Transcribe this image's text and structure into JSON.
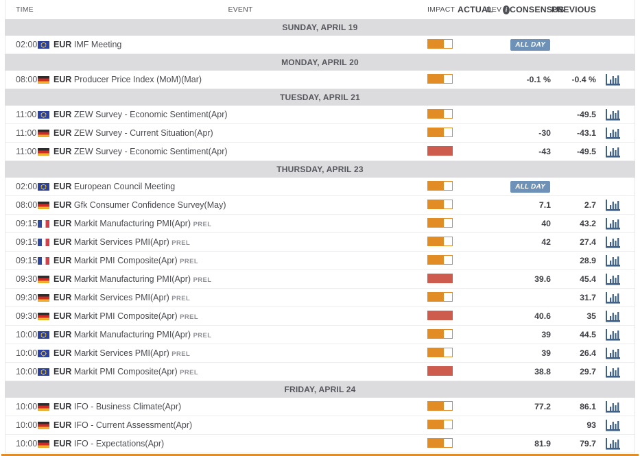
{
  "colors": {
    "accent_orange": "#e18c25",
    "impact_high_red": "#cd5c4e",
    "allday_badge_bg": "#6e92b7",
    "chart_icon_blue": "#3e5f86",
    "separator_bg": "#dcdcde"
  },
  "header": {
    "time": "TIME",
    "event": "EVENT",
    "impact": "IMPACT",
    "actual": "ACTUAL",
    "dev": "DEV",
    "dev_info_glyph": "i",
    "consensus": "CONSENSUS",
    "previous": "PREVIOUS"
  },
  "sections": [
    {
      "date": "SUNDAY, APRIL 19",
      "rows": [
        {
          "time": "02:00",
          "flag": "eu",
          "currency": "EUR",
          "event": "IMF Meeting",
          "prel": "",
          "impact": "medium",
          "actual": "",
          "consensus": "",
          "previous": "",
          "badge": "ALL DAY",
          "chart": false
        }
      ]
    },
    {
      "date": "MONDAY, APRIL 20",
      "rows": [
        {
          "time": "08:00",
          "flag": "de",
          "currency": "EUR",
          "event": "Producer Price Index (MoM)(Mar)",
          "prel": "",
          "impact": "medium",
          "actual": "",
          "consensus": "-0.1 %",
          "previous": "-0.4 %",
          "badge": "",
          "chart": true
        }
      ]
    },
    {
      "date": "TUESDAY, APRIL 21",
      "rows": [
        {
          "time": "11:00",
          "flag": "eu",
          "currency": "EUR",
          "event": "ZEW Survey - Economic Sentiment(Apr)",
          "prel": "",
          "impact": "medium",
          "actual": "",
          "consensus": "",
          "previous": "-49.5",
          "badge": "",
          "chart": true
        },
        {
          "time": "11:00",
          "flag": "de",
          "currency": "EUR",
          "event": "ZEW Survey - Current Situation(Apr)",
          "prel": "",
          "impact": "medium",
          "actual": "",
          "consensus": "-30",
          "previous": "-43.1",
          "badge": "",
          "chart": true
        },
        {
          "time": "11:00",
          "flag": "de",
          "currency": "EUR",
          "event": "ZEW Survey - Economic Sentiment(Apr)",
          "prel": "",
          "impact": "high",
          "actual": "",
          "consensus": "-43",
          "previous": "-49.5",
          "badge": "",
          "chart": true
        }
      ]
    },
    {
      "date": "THURSDAY, APRIL 23",
      "rows": [
        {
          "time": "02:00",
          "flag": "eu",
          "currency": "EUR",
          "event": "European Council Meeting",
          "prel": "",
          "impact": "medium",
          "actual": "",
          "consensus": "",
          "previous": "",
          "badge": "ALL DAY",
          "chart": false
        },
        {
          "time": "08:00",
          "flag": "de",
          "currency": "EUR",
          "event": "Gfk Consumer Confidence Survey(May)",
          "prel": "",
          "impact": "medium",
          "actual": "",
          "consensus": "7.1",
          "previous": "2.7",
          "badge": "",
          "chart": true
        },
        {
          "time": "09:15",
          "flag": "fr",
          "currency": "EUR",
          "event": "Markit Manufacturing PMI(Apr)",
          "prel": "PREL",
          "impact": "medium",
          "actual": "",
          "consensus": "40",
          "previous": "43.2",
          "badge": "",
          "chart": true
        },
        {
          "time": "09:15",
          "flag": "fr",
          "currency": "EUR",
          "event": "Markit Services PMI(Apr)",
          "prel": "PREL",
          "impact": "medium",
          "actual": "",
          "consensus": "42",
          "previous": "27.4",
          "badge": "",
          "chart": true
        },
        {
          "time": "09:15",
          "flag": "fr",
          "currency": "EUR",
          "event": "Markit PMI Composite(Apr)",
          "prel": "PREL",
          "impact": "medium",
          "actual": "",
          "consensus": "",
          "previous": "28.9",
          "badge": "",
          "chart": true
        },
        {
          "time": "09:30",
          "flag": "de",
          "currency": "EUR",
          "event": "Markit Manufacturing PMI(Apr)",
          "prel": "PREL",
          "impact": "high",
          "actual": "",
          "consensus": "39.6",
          "previous": "45.4",
          "badge": "",
          "chart": true
        },
        {
          "time": "09:30",
          "flag": "de",
          "currency": "EUR",
          "event": "Markit Services PMI(Apr)",
          "prel": "PREL",
          "impact": "medium",
          "actual": "",
          "consensus": "",
          "previous": "31.7",
          "badge": "",
          "chart": true
        },
        {
          "time": "09:30",
          "flag": "de",
          "currency": "EUR",
          "event": "Markit PMI Composite(Apr)",
          "prel": "PREL",
          "impact": "high",
          "actual": "",
          "consensus": "40.6",
          "previous": "35",
          "badge": "",
          "chart": true
        },
        {
          "time": "10:00",
          "flag": "eu",
          "currency": "EUR",
          "event": "Markit Manufacturing PMI(Apr)",
          "prel": "PREL",
          "impact": "medium",
          "actual": "",
          "consensus": "39",
          "previous": "44.5",
          "badge": "",
          "chart": true
        },
        {
          "time": "10:00",
          "flag": "eu",
          "currency": "EUR",
          "event": "Markit Services PMI(Apr)",
          "prel": "PREL",
          "impact": "medium",
          "actual": "",
          "consensus": "39",
          "previous": "26.4",
          "badge": "",
          "chart": true
        },
        {
          "time": "10:00",
          "flag": "eu",
          "currency": "EUR",
          "event": "Markit PMI Composite(Apr)",
          "prel": "PREL",
          "impact": "high",
          "actual": "",
          "consensus": "38.8",
          "previous": "29.7",
          "badge": "",
          "chart": true
        }
      ]
    },
    {
      "date": "FRIDAY, APRIL 24",
      "rows": [
        {
          "time": "10:00",
          "flag": "de",
          "currency": "EUR",
          "event": "IFO - Business Climate(Apr)",
          "prel": "",
          "impact": "medium",
          "actual": "",
          "consensus": "77.2",
          "previous": "86.1",
          "badge": "",
          "chart": true
        },
        {
          "time": "10:00",
          "flag": "de",
          "currency": "EUR",
          "event": "IFO - Current Assessment(Apr)",
          "prel": "",
          "impact": "medium",
          "actual": "",
          "consensus": "",
          "previous": "93",
          "badge": "",
          "chart": true
        },
        {
          "time": "10:00",
          "flag": "de",
          "currency": "EUR",
          "event": "IFO - Expectations(Apr)",
          "prel": "",
          "impact": "medium",
          "actual": "",
          "consensus": "81.9",
          "previous": "79.7",
          "badge": "",
          "chart": true
        }
      ]
    }
  ]
}
